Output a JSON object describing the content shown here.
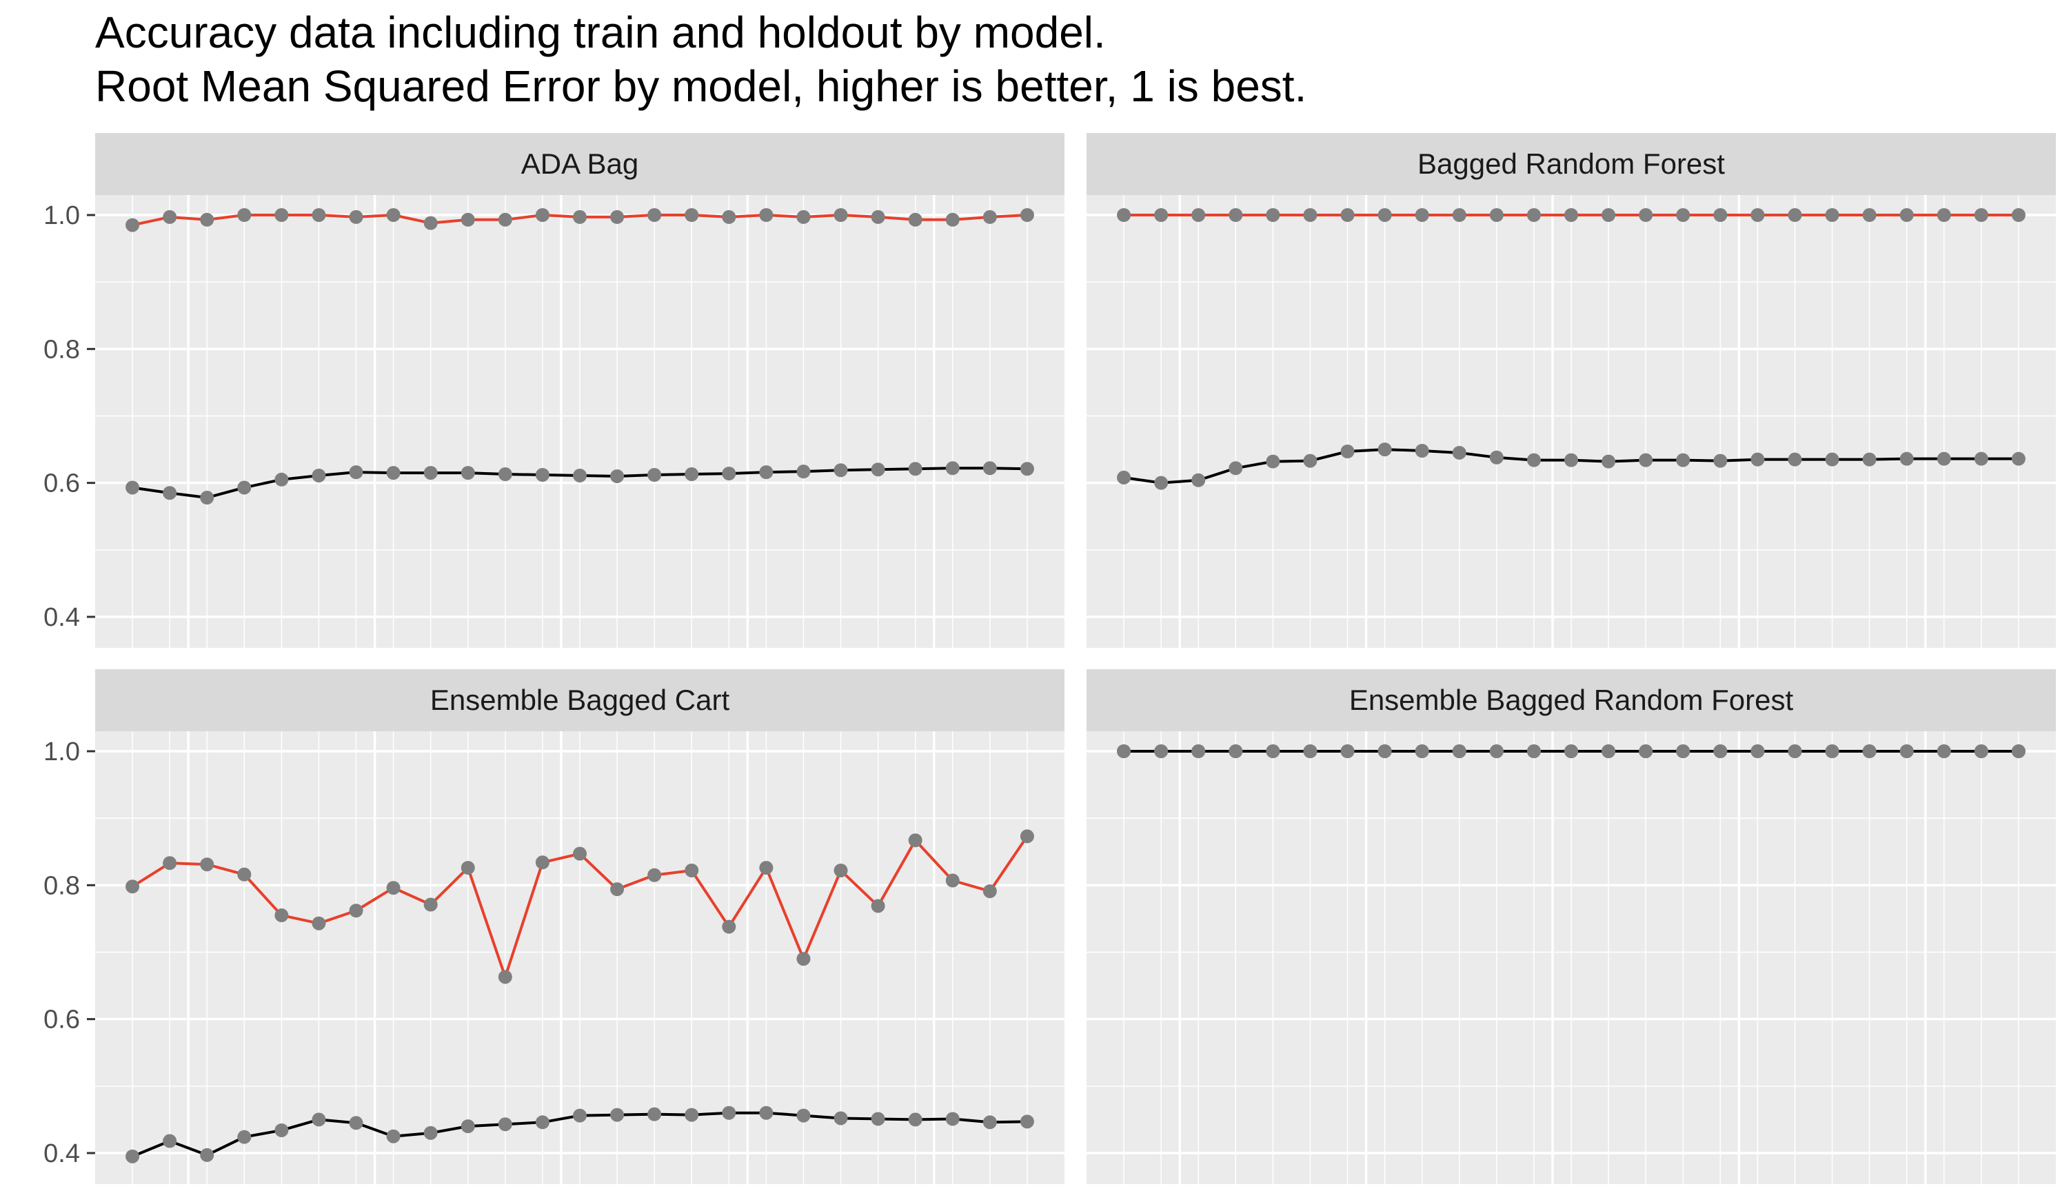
{
  "title_lines": [
    "Accuracy data including train and holdout by model.",
    "Root Mean Squared Error by model, higher is better, 1 is best."
  ],
  "colors": {
    "panel_bg": "#ebebeb",
    "strip_bg": "#d9d9d9",
    "grid": "#ffffff",
    "train_line": "#e8402c",
    "holdout_line": "#000000",
    "point": "#7f7f7f"
  },
  "chart_data": {
    "type": "line",
    "layout": "facet-grid 2x2",
    "x": [
      1,
      2,
      3,
      4,
      5,
      6,
      7,
      8,
      9,
      10,
      11,
      12,
      13,
      14,
      15,
      16,
      17,
      18,
      19,
      20,
      21,
      22,
      23,
      24,
      25
    ],
    "xlim": [
      0,
      26
    ],
    "ylim": [
      0.38,
      1.05
    ],
    "y_ticks": [
      0.4,
      0.6,
      0.8,
      1.0
    ],
    "y_tick_labels": [
      "0.4",
      "0.6",
      "0.8",
      "1.0"
    ],
    "grid": true,
    "legend": "none",
    "panels": [
      {
        "label": "ADA Bag",
        "series": [
          {
            "role": "train",
            "color": "#e8402c",
            "values": [
              0.985,
              0.997,
              0.993,
              1.0,
              1.0,
              1.0,
              0.997,
              1.0,
              0.988,
              0.993,
              0.993,
              1.0,
              0.997,
              0.997,
              1.0,
              1.0,
              0.997,
              1.0,
              0.997,
              1.0,
              0.997,
              0.993,
              0.993,
              0.997,
              1.0
            ]
          },
          {
            "role": "holdout",
            "color": "#000000",
            "values": [
              0.593,
              0.585,
              0.578,
              0.593,
              0.605,
              0.611,
              0.616,
              0.615,
              0.615,
              0.615,
              0.613,
              0.612,
              0.611,
              0.61,
              0.612,
              0.613,
              0.614,
              0.616,
              0.617,
              0.619,
              0.62,
              0.621,
              0.622,
              0.622,
              0.621
            ]
          }
        ]
      },
      {
        "label": "Bagged Random Forest",
        "series": [
          {
            "role": "train",
            "color": "#e8402c",
            "values": [
              1.0,
              1.0,
              1.0,
              1.0,
              1.0,
              1.0,
              1.0,
              1.0,
              1.0,
              1.0,
              1.0,
              1.0,
              1.0,
              1.0,
              1.0,
              1.0,
              1.0,
              1.0,
              1.0,
              1.0,
              1.0,
              1.0,
              1.0,
              1.0,
              1.0
            ]
          },
          {
            "role": "holdout",
            "color": "#000000",
            "values": [
              0.608,
              0.6,
              0.604,
              0.622,
              0.632,
              0.633,
              0.647,
              0.65,
              0.648,
              0.645,
              0.638,
              0.634,
              0.634,
              0.632,
              0.634,
              0.634,
              0.633,
              0.635,
              0.635,
              0.635,
              0.635,
              0.636,
              0.636,
              0.636,
              0.636
            ]
          }
        ]
      },
      {
        "label": "Ensemble Bagged Cart",
        "series": [
          {
            "role": "train",
            "color": "#e8402c",
            "values": [
              0.798,
              0.833,
              0.831,
              0.816,
              0.755,
              0.743,
              0.762,
              0.796,
              0.771,
              0.826,
              0.663,
              0.834,
              0.847,
              0.794,
              0.815,
              0.822,
              0.738,
              0.826,
              0.69,
              0.822,
              0.769,
              0.867,
              0.807,
              0.791,
              0.873
            ]
          },
          {
            "role": "holdout",
            "color": "#000000",
            "values": [
              0.395,
              0.418,
              0.397,
              0.424,
              0.434,
              0.45,
              0.445,
              0.425,
              0.43,
              0.44,
              0.443,
              0.446,
              0.456,
              0.457,
              0.458,
              0.457,
              0.46,
              0.46,
              0.456,
              0.452,
              0.451,
              0.45,
              0.451,
              0.446,
              0.447
            ]
          }
        ]
      },
      {
        "label": "Ensemble Bagged Random Forest",
        "series": [
          {
            "role": "train",
            "color": "#e8402c",
            "values": [
              1.0,
              1.0,
              1.0,
              1.0,
              1.0,
              1.0,
              1.0,
              1.0,
              1.0,
              1.0,
              1.0,
              1.0,
              1.0,
              1.0,
              1.0,
              1.0,
              1.0,
              1.0,
              1.0,
              1.0,
              1.0,
              1.0,
              1.0,
              1.0,
              1.0
            ]
          },
          {
            "role": "holdout",
            "color": "#000000",
            "values": [
              1.0,
              1.0,
              1.0,
              1.0,
              1.0,
              1.0,
              1.0,
              1.0,
              1.0,
              1.0,
              1.0,
              1.0,
              1.0,
              1.0,
              1.0,
              1.0,
              1.0,
              1.0,
              1.0,
              1.0,
              1.0,
              1.0,
              1.0,
              1.0,
              1.0
            ]
          }
        ]
      }
    ]
  }
}
